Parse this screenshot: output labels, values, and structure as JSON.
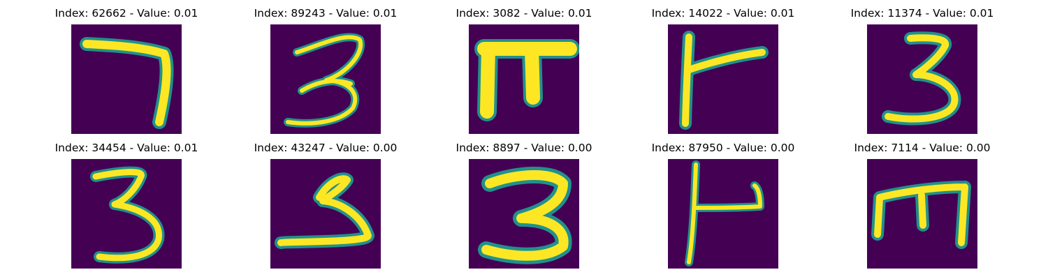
{
  "panels": [
    {
      "title": "Index: 62662 - Value: 0.01",
      "glyph": "7-like stroke"
    },
    {
      "title": "Index: 89243 - Value: 0.01",
      "glyph": "3-like stroke"
    },
    {
      "title": "Index: 3082 - Value: 0.01",
      "glyph": "pi-like stroke"
    },
    {
      "title": "Index: 14022 - Value: 0.01",
      "glyph": "F-like stroke"
    },
    {
      "title": "Index: 11374 - Value: 0.01",
      "glyph": "3-like stroke"
    },
    {
      "title": "Index: 34454 - Value: 0.01",
      "glyph": "3-like stroke"
    },
    {
      "title": "Index: 43247 - Value: 0.00",
      "glyph": "stylized-3 stroke"
    },
    {
      "title": "Index: 8897 - Value: 0.00",
      "glyph": "3-like stroke"
    },
    {
      "title": "Index: 87950 - Value: 0.00",
      "glyph": "L-hook stroke"
    },
    {
      "title": "Index: 7114 - Value: 0.00",
      "glyph": "m-like stroke"
    }
  ],
  "colors": {
    "background": "#440154",
    "stroke_core": "#fde725",
    "stroke_edge": "#21918c",
    "stroke_mid": "#5ec962"
  }
}
